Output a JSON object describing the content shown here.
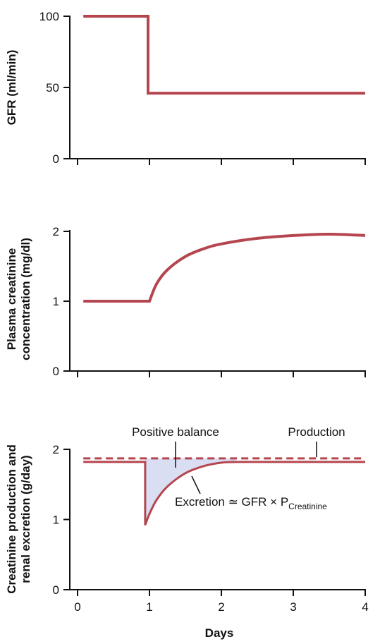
{
  "colors": {
    "curve": "#b5454f",
    "fill": "#d9def3",
    "axis": "#111111"
  },
  "chart_data": [
    {
      "type": "line",
      "ylabel": "GFR (ml/min)",
      "xlim": [
        0,
        4
      ],
      "ylim": [
        0,
        100
      ],
      "yticks": [
        0,
        50,
        100
      ],
      "ytick_labels": [
        "0",
        "50",
        "100"
      ],
      "xticks": [
        0,
        1,
        2,
        3,
        4
      ],
      "x_tick_labels_shown": false,
      "series": [
        {
          "x": [
            0.08,
            0.98,
            0.98,
            4.0
          ],
          "values": [
            100,
            100,
            46,
            46
          ]
        }
      ]
    },
    {
      "type": "line",
      "ylabel_lines": [
        "Plasma creatinine",
        "concentration (mg/dl)"
      ],
      "xlim": [
        0,
        4
      ],
      "ylim": [
        0,
        2
      ],
      "yticks": [
        0,
        1,
        2
      ],
      "ytick_labels": [
        "0",
        "1",
        "2"
      ],
      "xticks": [
        0,
        1,
        2,
        3,
        4
      ],
      "x_tick_labels_shown": false,
      "series": [
        {
          "x": [
            0.08,
            1.0,
            1.1,
            1.25,
            1.5,
            1.75,
            2.0,
            2.5,
            3.0,
            3.5,
            4.0
          ],
          "values": [
            1.0,
            1.0,
            1.25,
            1.45,
            1.64,
            1.75,
            1.82,
            1.9,
            1.94,
            1.96,
            1.94
          ]
        }
      ]
    },
    {
      "type": "area",
      "ylabel_lines": [
        "Creatinine production and",
        "renal excretion (g/day)"
      ],
      "xlabel": "Days",
      "xlim": [
        0,
        4
      ],
      "ylim": [
        0,
        2
      ],
      "yticks": [
        0,
        1,
        2
      ],
      "ytick_labels": [
        "0",
        "1",
        "2"
      ],
      "xticks": [
        0,
        1,
        2,
        3,
        4
      ],
      "xtick_labels": [
        "0",
        "1",
        "2",
        "3",
        "4"
      ],
      "series": [
        {
          "style": "dashed",
          "x": [
            0.08,
            4.0
          ],
          "values": [
            1.87,
            1.87
          ]
        },
        {
          "style": "solid",
          "x": [
            0.08,
            0.94,
            0.94,
            1.0,
            1.1,
            1.25,
            1.5,
            1.75,
            2.0,
            2.2,
            4.0
          ],
          "values": [
            1.82,
            1.82,
            0.92,
            1.08,
            1.28,
            1.47,
            1.66,
            1.76,
            1.81,
            1.82,
            1.82
          ]
        }
      ],
      "annotations": {
        "positive_balance": "Positive balance",
        "production": "Production",
        "excretion_main": "Excretion ≃ GFR × P",
        "excretion_sub": "Creatinine"
      }
    }
  ]
}
